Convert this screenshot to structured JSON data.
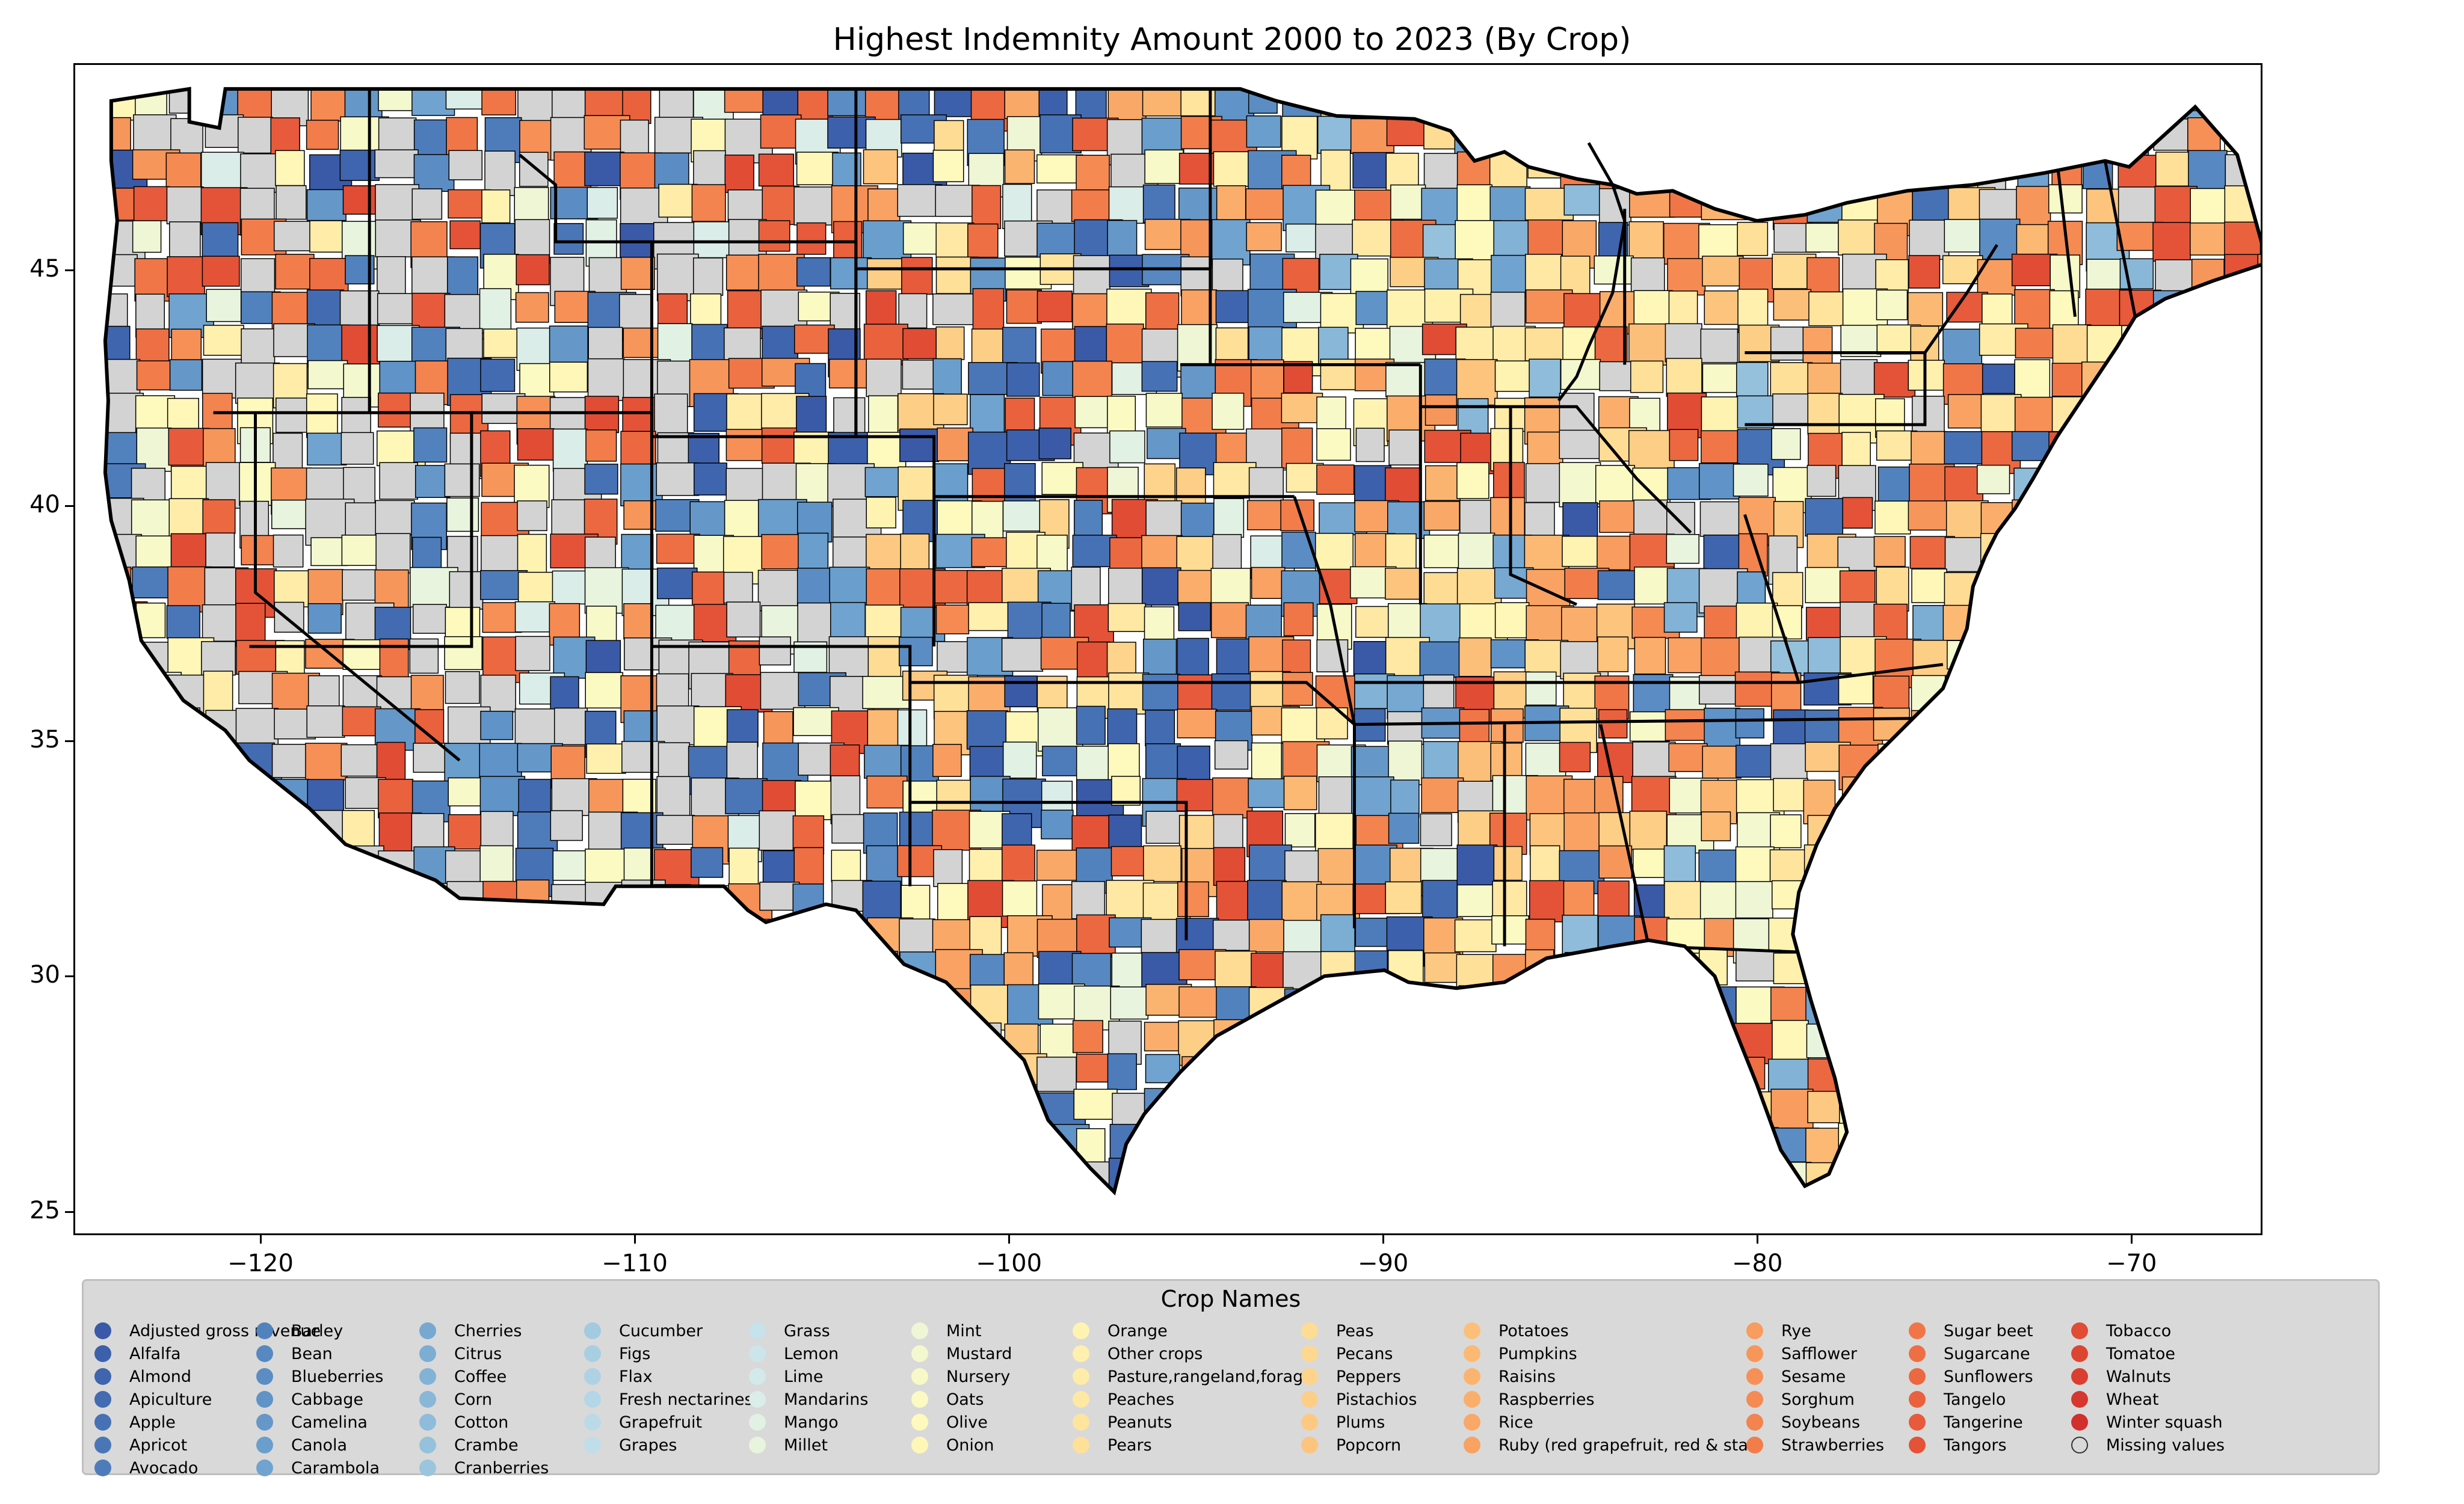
{
  "title": "Highest Indemnity Amount 2000 to 2023 (By Crop)",
  "map": {
    "type": "choropleth",
    "region": "Contiguous United States counties",
    "x_ticks": [
      "−120",
      "−110",
      "−100",
      "−90",
      "−80",
      "−70"
    ],
    "y_ticks": [
      "45",
      "40",
      "35",
      "30",
      "25"
    ],
    "xlim": [
      -125,
      -66.5
    ],
    "ylim": [
      24.5,
      49.4
    ]
  },
  "legend": {
    "title": "Crop Names",
    "columns": [
      [
        {
          "label": "Adjusted gross revenue",
          "color": "#3a5aa8"
        },
        {
          "label": "Alfalfa",
          "color": "#3d60ac"
        },
        {
          "label": "Almond",
          "color": "#4065af"
        },
        {
          "label": "Apiculture",
          "color": "#436bb2"
        },
        {
          "label": "Apple",
          "color": "#4771b5"
        },
        {
          "label": "Apricot",
          "color": "#4a76b8"
        },
        {
          "label": "Avocado",
          "color": "#4e7cbb"
        }
      ],
      [
        {
          "label": "Barley",
          "color": "#5282be"
        },
        {
          "label": "Bean",
          "color": "#5788c1"
        },
        {
          "label": "Blueberries",
          "color": "#5b8dc4"
        },
        {
          "label": "Cabbage",
          "color": "#6093c7"
        },
        {
          "label": "Camelina",
          "color": "#6598c9"
        },
        {
          "label": "Canola",
          "color": "#6a9ecc"
        },
        {
          "label": "Carambola",
          "color": "#70a3cf"
        }
      ],
      [
        {
          "label": "Cherries",
          "color": "#76a8d1"
        },
        {
          "label": "Citrus",
          "color": "#7cadd3"
        },
        {
          "label": "Coffee",
          "color": "#82b2d6"
        },
        {
          "label": "Corn",
          "color": "#88b7d8"
        },
        {
          "label": "Cotton",
          "color": "#8ebcda"
        },
        {
          "label": "Crambe",
          "color": "#95c1dc"
        },
        {
          "label": "Cranberries",
          "color": "#9bc5de"
        }
      ],
      [
        {
          "label": "Cucumber",
          "color": "#a2cae0"
        },
        {
          "label": "Figs",
          "color": "#a8cee2"
        },
        {
          "label": "Flax",
          "color": "#aed2e4"
        },
        {
          "label": "Fresh nectarines",
          "color": "#b4d6e6"
        },
        {
          "label": "Grapefruit",
          "color": "#badae8"
        },
        {
          "label": "Grapes",
          "color": "#c0deea"
        }
      ],
      [
        {
          "label": "Grass",
          "color": "#c6e2eb"
        },
        {
          "label": "Lemon",
          "color": "#cce5eb"
        },
        {
          "label": "Lime",
          "color": "#d3e9ea"
        },
        {
          "label": "Mandarins",
          "color": "#daede8"
        },
        {
          "label": "Mango",
          "color": "#e1f1e4"
        },
        {
          "label": "Millet",
          "color": "#e8f4dd"
        }
      ],
      [
        {
          "label": "Mint",
          "color": "#eef6d6"
        },
        {
          "label": "Mustard",
          "color": "#f3f8cf"
        },
        {
          "label": "Nursery",
          "color": "#f7f9c8"
        },
        {
          "label": "Oats",
          "color": "#fbfac2"
        },
        {
          "label": "Olive",
          "color": "#fef9bd"
        },
        {
          "label": "Onion",
          "color": "#fff7b8"
        }
      ],
      [
        {
          "label": "Orange",
          "color": "#fff3b2"
        },
        {
          "label": "Other crops",
          "color": "#fff0ad"
        },
        {
          "label": "Pasture,rangeland,forage",
          "color": "#ffeca8"
        },
        {
          "label": "Peaches",
          "color": "#ffe8a3"
        },
        {
          "label": "Peanuts",
          "color": "#ffe49e"
        },
        {
          "label": "Pears",
          "color": "#ffe099"
        }
      ],
      [
        {
          "label": "Peas",
          "color": "#ffdc94"
        },
        {
          "label": "Pecans",
          "color": "#fed790"
        },
        {
          "label": "Peppers",
          "color": "#fed38b"
        },
        {
          "label": "Pistachios",
          "color": "#fdce86"
        },
        {
          "label": "Plums",
          "color": "#fdc982"
        },
        {
          "label": "Popcorn",
          "color": "#fdc47d"
        }
      ],
      [
        {
          "label": "Potatoes",
          "color": "#fcbf79"
        },
        {
          "label": "Pumpkins",
          "color": "#fcb974"
        },
        {
          "label": "Raisins",
          "color": "#fbb470"
        },
        {
          "label": "Raspberries",
          "color": "#fbae6b"
        },
        {
          "label": "Rice",
          "color": "#faa867"
        },
        {
          "label": "Ruby (red grapefruit, red & star)",
          "color": "#f9a263"
        }
      ],
      [
        {
          "label": "Rye",
          "color": "#f89c5f"
        },
        {
          "label": "Safflower",
          "color": "#f7965b"
        },
        {
          "label": "Sesame",
          "color": "#f69057"
        },
        {
          "label": "Sorghum",
          "color": "#f58a53"
        },
        {
          "label": "Soybeans",
          "color": "#f3834f"
        },
        {
          "label": "Strawberries",
          "color": "#f27d4b"
        }
      ],
      [
        {
          "label": "Sugar beet",
          "color": "#f07648"
        },
        {
          "label": "Sugarcane",
          "color": "#ee6f44"
        },
        {
          "label": "Sunflowers",
          "color": "#ec6841"
        },
        {
          "label": "Tangelo",
          "color": "#ea613e"
        },
        {
          "label": "Tangerine",
          "color": "#e75a3b"
        },
        {
          "label": "Tangors",
          "color": "#e45338"
        }
      ],
      [
        {
          "label": "Tobacco",
          "color": "#e14c35"
        },
        {
          "label": "Tomatoe",
          "color": "#dd4533"
        },
        {
          "label": "Walnuts",
          "color": "#da3e31"
        },
        {
          "label": "Wheat",
          "color": "#d6372f"
        },
        {
          "label": "Winter squash",
          "color": "#d2302d"
        },
        {
          "label": "Missing values",
          "color": "#d3d3d3"
        }
      ]
    ]
  }
}
